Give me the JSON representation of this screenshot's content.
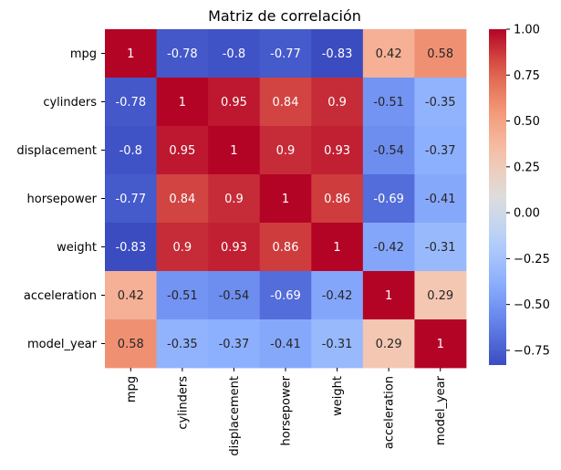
{
  "chart_data": {
    "type": "heatmap",
    "title": "Matriz de correlación",
    "xlabel": "",
    "ylabel": "",
    "rows": [
      "mpg",
      "cylinders",
      "displacement",
      "horsepower",
      "weight",
      "acceleration",
      "model_year"
    ],
    "columns": [
      "mpg",
      "cylinders",
      "displacement",
      "horsepower",
      "weight",
      "acceleration",
      "model_year"
    ],
    "values": [
      [
        1,
        -0.78,
        -0.8,
        -0.77,
        -0.83,
        0.42,
        0.58
      ],
      [
        -0.78,
        1,
        0.95,
        0.84,
        0.9,
        -0.51,
        -0.35
      ],
      [
        -0.8,
        0.95,
        1,
        0.9,
        0.93,
        -0.54,
        -0.37
      ],
      [
        -0.77,
        0.84,
        0.9,
        1,
        0.86,
        -0.69,
        -0.41
      ],
      [
        -0.83,
        0.9,
        0.93,
        0.86,
        1,
        -0.42,
        -0.31
      ],
      [
        0.42,
        -0.51,
        -0.54,
        -0.69,
        -0.42,
        1,
        0.29
      ],
      [
        0.58,
        -0.35,
        -0.37,
        -0.41,
        -0.31,
        0.29,
        1
      ]
    ],
    "colormap": "coolwarm",
    "vmin": -0.83,
    "vmax": 1.0,
    "colorbar_ticks": [
      "1.00",
      "0.75",
      "0.50",
      "0.25",
      "0.00",
      "−0.25",
      "−0.50",
      "−0.75"
    ],
    "colorbar_tick_values": [
      1.0,
      0.75,
      0.5,
      0.25,
      0.0,
      -0.25,
      -0.5,
      -0.75
    ],
    "grid": false,
    "legend": "colorbar-right"
  }
}
